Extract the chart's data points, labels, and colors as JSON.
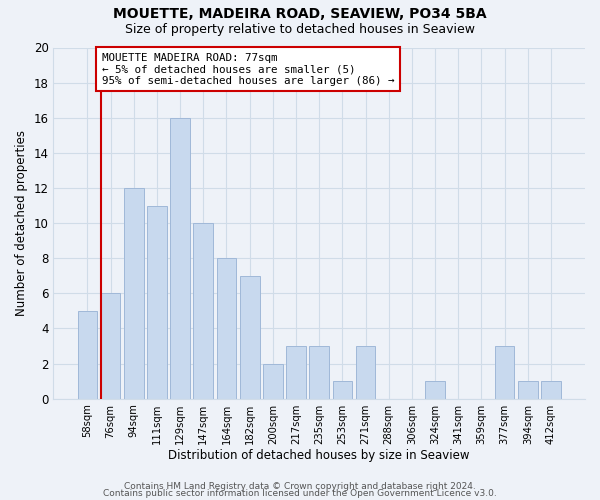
{
  "title": "MOUETTE, MADEIRA ROAD, SEAVIEW, PO34 5BA",
  "subtitle": "Size of property relative to detached houses in Seaview",
  "xlabel": "Distribution of detached houses by size in Seaview",
  "ylabel": "Number of detached properties",
  "bar_labels": [
    "58sqm",
    "76sqm",
    "94sqm",
    "111sqm",
    "129sqm",
    "147sqm",
    "164sqm",
    "182sqm",
    "200sqm",
    "217sqm",
    "235sqm",
    "253sqm",
    "271sqm",
    "288sqm",
    "306sqm",
    "324sqm",
    "341sqm",
    "359sqm",
    "377sqm",
    "394sqm",
    "412sqm"
  ],
  "bar_values": [
    5,
    6,
    12,
    11,
    16,
    10,
    8,
    7,
    2,
    3,
    3,
    1,
    3,
    0,
    0,
    1,
    0,
    0,
    3,
    1,
    1
  ],
  "bar_color": "#c8d9ee",
  "bar_edge_color": "#a0b8d8",
  "vline_color": "#cc0000",
  "annotation_text": "MOUETTE MADEIRA ROAD: 77sqm\n← 5% of detached houses are smaller (5)\n95% of semi-detached houses are larger (86) →",
  "annotation_box_color": "#ffffff",
  "annotation_box_edge": "#cc0000",
  "ylim": [
    0,
    20
  ],
  "yticks": [
    0,
    2,
    4,
    6,
    8,
    10,
    12,
    14,
    16,
    18,
    20
  ],
  "footer1": "Contains HM Land Registry data © Crown copyright and database right 2024.",
  "footer2": "Contains public sector information licensed under the Open Government Licence v3.0.",
  "grid_color": "#d0dce8",
  "background_color": "#eef2f8"
}
